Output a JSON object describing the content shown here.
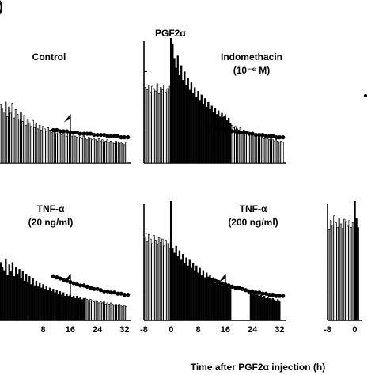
{
  "figure": {
    "corner_mark": ")",
    "top_annotation": "PGF2α",
    "xlabel": "Time after PGF2α injection (h)"
  },
  "chart_data": [
    {
      "type": "bar",
      "panel": "top-left",
      "label_lines": [
        "Control"
      ],
      "xlim": [
        -8,
        34
      ],
      "ylim": [
        0,
        100
      ],
      "bar_width_h": 0.5,
      "x_ticks": [],
      "dots": {
        "x_start": 11,
        "x_end": 33,
        "values": [
          27,
          27,
          26,
          26,
          26,
          25,
          25,
          25,
          24,
          24,
          24,
          24,
          23,
          23,
          23,
          23,
          22,
          22,
          22,
          22,
          21,
          21,
          21
        ]
      },
      "arrow_at": 16,
      "segments": [
        {
          "fill": "open",
          "x_start": -7.5,
          "values": [
            52,
            47,
            50,
            44,
            55,
            40,
            48,
            45,
            42,
            50,
            38,
            46,
            41,
            49,
            37,
            44,
            40,
            36,
            42,
            34,
            39,
            31,
            36,
            33,
            30,
            35,
            29,
            32,
            28,
            31,
            27,
            30,
            28,
            26,
            29,
            27,
            25,
            28,
            26,
            24,
            27,
            25,
            23,
            26,
            24,
            22,
            25,
            23,
            22,
            24,
            22,
            21,
            23,
            21,
            20,
            22,
            20,
            19,
            21,
            20,
            19,
            20,
            19,
            18,
            20,
            18,
            19,
            17,
            18,
            19,
            17,
            18,
            17,
            16,
            18,
            17,
            16,
            17,
            16,
            15,
            17
          ]
        }
      ]
    },
    {
      "type": "bar",
      "panel": "top-middle",
      "label_lines": [
        "Indomethacin",
        "(10⁻⁶ M)"
      ],
      "xlim": [
        -8,
        34
      ],
      "ylim": [
        0,
        100
      ],
      "bar_width_h": 0.5,
      "x_ticks": [],
      "injection_line_at": 0,
      "dots": {
        "x_start": 11,
        "x_end": 33,
        "values": [
          30,
          29,
          29,
          28,
          28,
          27,
          27,
          26,
          26,
          25,
          25,
          25,
          24,
          24,
          23,
          23,
          23,
          22,
          22,
          22,
          21,
          21,
          21
        ]
      },
      "arrow_at": 16,
      "segments": [
        {
          "fill": "open",
          "x_start": -7.5,
          "values": [
            62,
            60,
            64,
            58,
            63,
            61,
            59,
            65,
            57,
            62,
            60,
            64,
            58,
            61,
            63,
            59
          ]
        },
        {
          "fill": "solid",
          "x_start": 0.5,
          "values": [
            98,
            86,
            78,
            88,
            72,
            80,
            68,
            75,
            64,
            70,
            60,
            66,
            57,
            62,
            54,
            59,
            51,
            56,
            48,
            53,
            46,
            50,
            44,
            47,
            42,
            45,
            40,
            43,
            38,
            41,
            36,
            39,
            35,
            37,
            33
          ]
        },
        {
          "fill": "open",
          "x_start": 18,
          "values": [
            31,
            29,
            30,
            28,
            27,
            29,
            26,
            27,
            25,
            26,
            24,
            25,
            23,
            24,
            22,
            23,
            21,
            22,
            21,
            20,
            21,
            20,
            19,
            20,
            19,
            18,
            19,
            18,
            17,
            18,
            17
          ]
        }
      ]
    },
    {
      "type": "bar",
      "panel": "mid-left",
      "label_lines": [
        "TNF-α",
        "(20 ng/ml)"
      ],
      "xlim": [
        -8,
        34
      ],
      "ylim": [
        0,
        100
      ],
      "bar_width_h": 0.5,
      "x_ticks": [
        8,
        16,
        24,
        32
      ],
      "dots": {
        "x_start": 11,
        "x_end": 33,
        "values": [
          38,
          37,
          36,
          35,
          34,
          33,
          32,
          31,
          30,
          30,
          29,
          28,
          27,
          27,
          26,
          25,
          25,
          24,
          24,
          23,
          23,
          22,
          22
        ]
      },
      "arrow_at": 16,
      "segments": [
        {
          "fill": "solid",
          "x_start": -7.5,
          "values": [
            52,
            47,
            55,
            44,
            58,
            41,
            50,
            46,
            43,
            53,
            39,
            48,
            42,
            50,
            38,
            46,
            40,
            44,
            36,
            42,
            34,
            40,
            33,
            38,
            31,
            36,
            30,
            34,
            29,
            32,
            28,
            31,
            27,
            29,
            26,
            28,
            25,
            27,
            24,
            26,
            23,
            25,
            22,
            24,
            21,
            23,
            21,
            22,
            20,
            21,
            19,
            21,
            19,
            20,
            18,
            19
          ]
        },
        {
          "fill": "open",
          "x_start": 20.5,
          "values": [
            19,
            18,
            17,
            18,
            17,
            16,
            17,
            16,
            15,
            16,
            15,
            16,
            14,
            15,
            14,
            15,
            14,
            13,
            14,
            13,
            14,
            13,
            12,
            13,
            12
          ]
        }
      ]
    },
    {
      "type": "bar",
      "panel": "mid-middle",
      "label_lines": [
        "TNF-α",
        "(200 ng/ml)"
      ],
      "xlim": [
        -8,
        34
      ],
      "ylim": [
        0,
        100
      ],
      "bar_width_h": 0.5,
      "x_ticks": [
        -8,
        0,
        8,
        16,
        24,
        32
      ],
      "injection_line_at": 0,
      "dots": {
        "x_start": 11,
        "x_end": 33,
        "values": [
          36,
          35,
          34,
          33,
          32,
          31,
          30,
          29,
          28,
          28,
          27,
          26,
          25,
          25,
          24,
          24,
          23,
          23,
          22,
          22,
          21,
          21,
          21
        ]
      },
      "arrow_at": 16,
      "segments": [
        {
          "fill": "open",
          "x_start": -7.5,
          "values": [
            72,
            68,
            74,
            70,
            66,
            73,
            69,
            65,
            71,
            67,
            70,
            64,
            69,
            66,
            62,
            67
          ]
        },
        {
          "fill": "solid",
          "x_start": 0.5,
          "values": [
            62,
            58,
            64,
            55,
            60,
            52,
            57,
            49,
            54,
            47,
            52,
            45,
            49,
            43,
            47,
            41,
            45,
            39,
            43,
            37,
            41,
            35,
            39,
            34,
            37,
            32,
            35,
            31,
            33,
            30,
            31,
            29,
            30,
            28,
            29
          ]
        },
        {
          "fill": "solid",
          "x_start": 23.5,
          "values": [
            24,
            23,
            24,
            22,
            23,
            21,
            22,
            20,
            21,
            19,
            20,
            19,
            18,
            19,
            18,
            17,
            18,
            17
          ]
        }
      ]
    },
    {
      "type": "bar",
      "panel": "mid-right",
      "label_lines": [],
      "xlim": [
        -8,
        2
      ],
      "ylim": [
        0,
        100
      ],
      "bar_width_h": 0.5,
      "x_ticks": [
        -8,
        0
      ],
      "injection_line_at": 0,
      "segments": [
        {
          "fill": "open",
          "x_start": -7.5,
          "values": [
            78,
            86,
            82,
            90,
            84,
            80,
            88,
            83,
            79,
            87,
            85,
            81,
            86,
            80,
            84,
            82
          ]
        },
        {
          "fill": "solid",
          "x_start": 0.5,
          "values": [
            88,
            80
          ]
        }
      ]
    }
  ]
}
